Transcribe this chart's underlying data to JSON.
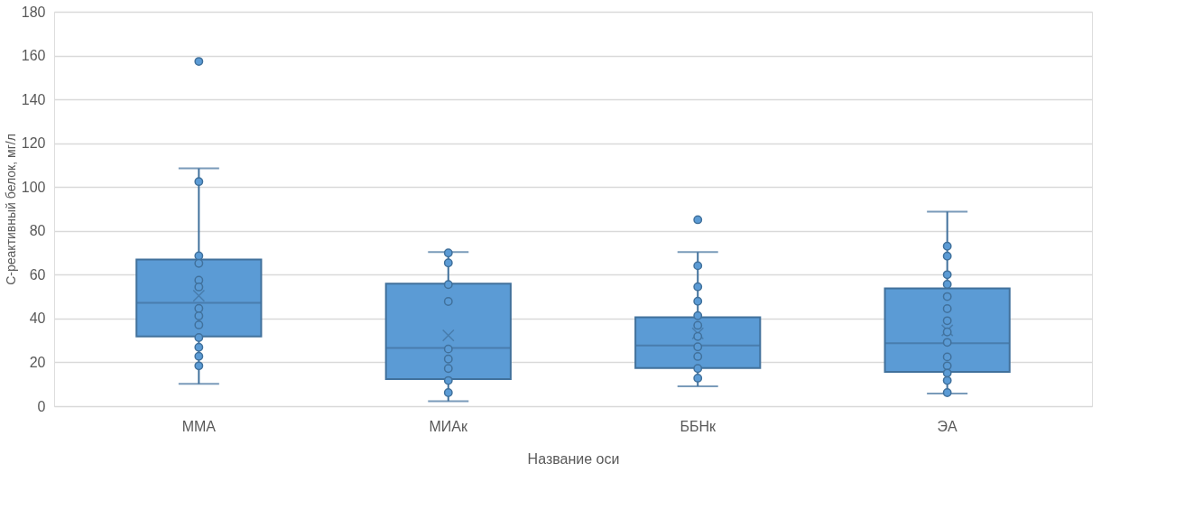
{
  "chart_data": {
    "type": "box",
    "xlabel": "Название оси",
    "ylabel": "С-реактивный белок, мг/л",
    "categories": [
      "ММА",
      "МИАк",
      "ББНк",
      "ЭА"
    ],
    "boxes": [
      {
        "low": 10.2,
        "q1": 31.8,
        "median": 47.2,
        "q3": 66.9,
        "high": 108.5,
        "mean": 50.4,
        "outliers": [
          157.3
        ]
      },
      {
        "low": 2.3,
        "q1": 12.4,
        "median": 26.6,
        "q3": 55.9,
        "high": 70.3,
        "mean": 32.3
      },
      {
        "low": 9.1,
        "q1": 17.4,
        "median": 27.7,
        "q3": 40.6,
        "high": 70.3,
        "mean": 33.2,
        "outliers": [
          85.1
        ]
      },
      {
        "low": 5.8,
        "q1": 15.7,
        "median": 28.7,
        "q3": 53.8,
        "high": 88.8,
        "mean": 34.6
      }
    ],
    "color": "#5b9bd5",
    "series": [
      {
        "type": "scatter",
        "color": "#5b9bd5",
        "x": [
          "ММА",
          "ММА",
          "ММА",
          "ММА",
          "ММА",
          "ММА",
          "ММА",
          "ММА",
          "ММА",
          "ММА",
          "ММА",
          "ММА",
          "МИАк",
          "МИАк",
          "МИАк",
          "МИАк",
          "МИАк",
          "МИАк",
          "МИАк",
          "МИАк",
          "МИАк",
          "ББНк",
          "ББНк",
          "ББНк",
          "ББНк",
          "ББНк",
          "ББНк",
          "ББНк",
          "ББНк",
          "ББНк",
          "ББНк",
          "ЭА",
          "ЭА",
          "ЭА",
          "ЭА",
          "ЭА",
          "ЭА",
          "ЭА",
          "ЭА",
          "ЭА",
          "ЭА",
          "ЭА",
          "ЭА",
          "ЭА",
          "ЭА"
        ],
        "values": [
          102.5,
          68.6,
          65.2,
          57.5,
          54.4,
          44.6,
          41.2,
          37.1,
          31.3,
          26.9,
          22.8,
          18.4,
          69.9,
          65.4,
          55.5,
          47.8,
          26.1,
          21.5,
          17.2,
          11.7,
          6.2,
          64.1,
          54.5,
          47.9,
          41.3,
          36.9,
          31.8,
          27.1,
          22.7,
          17.2,
          12.8,
          73.0,
          68.5,
          60.0,
          55.6,
          50.0,
          44.5,
          39.0,
          33.9,
          29.1,
          22.5,
          18.4,
          15.1,
          11.7,
          6.2
        ]
      }
    ],
    "marker": "circle",
    "ylim": [
      0,
      180
    ],
    "yticks": [
      0,
      20,
      40,
      60,
      80,
      100,
      120,
      140,
      160,
      180
    ],
    "grid": "y",
    "legend": false
  }
}
